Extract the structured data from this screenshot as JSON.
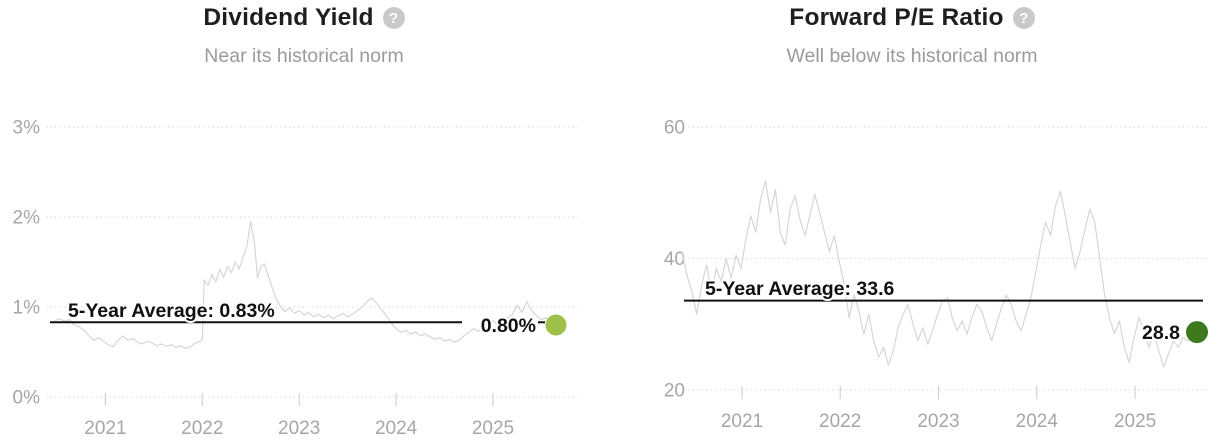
{
  "page": {
    "background": "#ffffff"
  },
  "colors": {
    "average_line": "#111111",
    "grid": "#d9d9d9",
    "axis_text": "#a6a6a6",
    "title_text": "#1e1e1e",
    "subtitle_text": "#9b9b9b",
    "help_icon_bg": "#c9c9c9",
    "series_line": "#d6d6d6",
    "dividend_dot": "#9ec04a",
    "pe_dot": "#3e7a1d"
  },
  "help_icon_glyph": "?",
  "chart_data": [
    {
      "type": "line",
      "title": "Dividend Yield",
      "subtitle": "Near its historical norm",
      "x_domain": [
        2020.48,
        2025.65
      ],
      "y_domain": [
        0,
        3
      ],
      "y_ticks": [
        {
          "v": 0,
          "label": "0%"
        },
        {
          "v": 1,
          "label": "1%"
        },
        {
          "v": 2,
          "label": "2%"
        },
        {
          "v": 3,
          "label": "3%"
        }
      ],
      "x_ticks": [
        {
          "v": 2021,
          "label": "2021"
        },
        {
          "v": 2022,
          "label": "2022"
        },
        {
          "v": 2023,
          "label": "2023"
        },
        {
          "v": 2024,
          "label": "2024"
        },
        {
          "v": 2025,
          "label": "2025"
        }
      ],
      "grid": "dotted",
      "legend": "none",
      "average": {
        "value": 0.83,
        "label": "5-Year Average: 0.83%"
      },
      "current": {
        "value": 0.8,
        "label": "0.80%",
        "dot_color": "#9ec04a"
      },
      "series": [
        {
          "name": "Dividend Yield",
          "color": "#d6d6d6",
          "x": [
            2020.48,
            2020.53,
            2020.58,
            2020.63,
            2020.68,
            2020.73,
            2020.78,
            2020.83,
            2020.88,
            2020.93,
            2020.98,
            2021.03,
            2021.08,
            2021.13,
            2021.18,
            2021.23,
            2021.28,
            2021.33,
            2021.38,
            2021.43,
            2021.48,
            2021.53,
            2021.58,
            2021.63,
            2021.68,
            2021.73,
            2021.78,
            2021.83,
            2021.88,
            2021.93,
            2021.98,
            2022.0,
            2022.02,
            2022.06,
            2022.1,
            2022.14,
            2022.18,
            2022.22,
            2022.26,
            2022.3,
            2022.34,
            2022.38,
            2022.42,
            2022.46,
            2022.5,
            2022.54,
            2022.57,
            2022.6,
            2022.64,
            2022.68,
            2022.72,
            2022.76,
            2022.8,
            2022.85,
            2022.9,
            2022.95,
            2023.0,
            2023.05,
            2023.1,
            2023.15,
            2023.2,
            2023.25,
            2023.3,
            2023.35,
            2023.4,
            2023.45,
            2023.5,
            2023.55,
            2023.6,
            2023.65,
            2023.7,
            2023.75,
            2023.8,
            2023.85,
            2023.9,
            2023.95,
            2024.0,
            2024.05,
            2024.1,
            2024.15,
            2024.2,
            2024.25,
            2024.3,
            2024.35,
            2024.4,
            2024.45,
            2024.5,
            2024.55,
            2024.6,
            2024.65,
            2024.7,
            2024.75,
            2024.8,
            2024.85,
            2024.9,
            2024.95,
            2025.0,
            2025.05,
            2025.1,
            2025.15,
            2025.2,
            2025.25,
            2025.3,
            2025.35,
            2025.4,
            2025.45,
            2025.5,
            2025.55,
            2025.6,
            2025.65
          ],
          "y": [
            0.85,
            0.87,
            0.84,
            0.86,
            0.8,
            0.78,
            0.74,
            0.68,
            0.63,
            0.66,
            0.62,
            0.58,
            0.56,
            0.63,
            0.68,
            0.63,
            0.65,
            0.61,
            0.59,
            0.62,
            0.6,
            0.57,
            0.59,
            0.56,
            0.58,
            0.55,
            0.57,
            0.54,
            0.56,
            0.6,
            0.62,
            0.64,
            1.3,
            1.24,
            1.36,
            1.28,
            1.42,
            1.33,
            1.45,
            1.38,
            1.5,
            1.42,
            1.55,
            1.68,
            1.95,
            1.7,
            1.32,
            1.44,
            1.48,
            1.35,
            1.22,
            1.1,
            1.02,
            0.95,
            0.99,
            0.93,
            0.96,
            0.91,
            0.94,
            0.89,
            0.92,
            0.88,
            0.91,
            0.87,
            0.9,
            0.93,
            0.89,
            0.92,
            0.96,
            1.0,
            1.06,
            1.1,
            1.04,
            0.97,
            0.9,
            0.82,
            0.76,
            0.72,
            0.74,
            0.7,
            0.72,
            0.68,
            0.7,
            0.67,
            0.64,
            0.66,
            0.62,
            0.64,
            0.61,
            0.63,
            0.68,
            0.72,
            0.76,
            0.73,
            0.78,
            0.82,
            0.85,
            0.8,
            0.84,
            0.88,
            0.92,
            1.02,
            0.94,
            1.06,
            0.96,
            0.9,
            0.86,
            0.88,
            0.82,
            0.8
          ]
        }
      ]
    },
    {
      "type": "line",
      "title": "Forward P/E Ratio",
      "subtitle": "Well below its historical norm",
      "x_domain": [
        2020.39,
        2025.63
      ],
      "y_domain": [
        20,
        60
      ],
      "y_ticks": [
        {
          "v": 20,
          "label": "20"
        },
        {
          "v": 40,
          "label": "40"
        },
        {
          "v": 60,
          "label": "60"
        }
      ],
      "x_ticks": [
        {
          "v": 2021,
          "label": "2021"
        },
        {
          "v": 2022,
          "label": "2022"
        },
        {
          "v": 2023,
          "label": "2023"
        },
        {
          "v": 2024,
          "label": "2024"
        },
        {
          "v": 2025,
          "label": "2025"
        }
      ],
      "grid": "dotted",
      "legend": "none",
      "average": {
        "value": 33.6,
        "label": "5-Year Average: 33.6"
      },
      "current": {
        "value": 28.8,
        "label": "28.8",
        "dot_color": "#3e7a1d"
      },
      "series": [
        {
          "name": "Forward P/E Ratio",
          "color": "#d6d6d6",
          "x": [
            2020.39,
            2020.44,
            2020.49,
            2020.54,
            2020.59,
            2020.64,
            2020.69,
            2020.74,
            2020.79,
            2020.84,
            2020.89,
            2020.94,
            2020.99,
            2021.04,
            2021.09,
            2021.14,
            2021.19,
            2021.24,
            2021.29,
            2021.34,
            2021.39,
            2021.44,
            2021.49,
            2021.54,
            2021.59,
            2021.64,
            2021.69,
            2021.74,
            2021.79,
            2021.84,
            2021.89,
            2021.94,
            2021.99,
            2022.04,
            2022.09,
            2022.14,
            2022.19,
            2022.24,
            2022.29,
            2022.34,
            2022.39,
            2022.44,
            2022.49,
            2022.54,
            2022.59,
            2022.64,
            2022.69,
            2022.74,
            2022.79,
            2022.84,
            2022.89,
            2022.94,
            2022.99,
            2023.04,
            2023.09,
            2023.14,
            2023.19,
            2023.24,
            2023.29,
            2023.34,
            2023.39,
            2023.44,
            2023.49,
            2023.54,
            2023.59,
            2023.64,
            2023.69,
            2023.74,
            2023.79,
            2023.84,
            2023.89,
            2023.94,
            2023.99,
            2024.04,
            2024.09,
            2024.14,
            2024.19,
            2024.24,
            2024.29,
            2024.34,
            2024.39,
            2024.44,
            2024.49,
            2024.54,
            2024.59,
            2024.64,
            2024.69,
            2024.74,
            2024.79,
            2024.84,
            2024.89,
            2024.94,
            2024.99,
            2025.04,
            2025.09,
            2025.14,
            2025.19,
            2025.24,
            2025.29,
            2025.34,
            2025.39,
            2025.44,
            2025.49,
            2025.54,
            2025.59,
            2025.63
          ],
          "y": [
            41,
            37.5,
            35,
            31.5,
            36,
            39,
            35,
            38.5,
            36.5,
            40,
            37,
            40.5,
            38.5,
            43,
            46.5,
            44,
            49,
            51.8,
            47,
            50.5,
            44,
            42,
            47.5,
            49.5,
            46,
            43.5,
            46.5,
            49.8,
            47,
            44,
            41,
            43.5,
            39.5,
            36,
            31,
            34.5,
            32,
            28.5,
            31.5,
            27.5,
            25,
            26.5,
            23.8,
            26,
            29.5,
            31.5,
            33,
            30,
            27.5,
            29.5,
            27,
            29,
            31.5,
            33.5,
            34,
            31,
            29,
            30.5,
            28.5,
            31,
            33,
            32,
            29.5,
            27.5,
            30,
            32.5,
            34.5,
            33,
            30.5,
            29,
            31.5,
            34,
            38,
            42,
            45.5,
            43.5,
            48,
            50.2,
            46.5,
            42.5,
            38.5,
            41,
            44.5,
            47.5,
            45.5,
            40,
            34.5,
            31,
            28.5,
            30.5,
            26.5,
            24.2,
            28,
            31,
            29,
            26.5,
            28.5,
            26,
            23.5,
            25.5,
            27.5,
            26.5,
            28,
            27.5,
            28,
            28.8
          ]
        }
      ]
    }
  ]
}
